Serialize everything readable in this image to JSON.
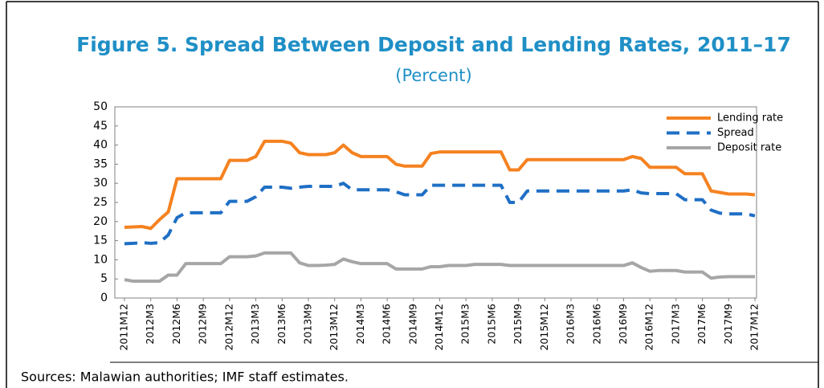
{
  "chart_data": {
    "type": "line",
    "title": "Figure 5. Spread Between Deposit and Lending Rates, 2011–17",
    "subtitle": "(Percent)",
    "source": "Sources: Malawian authorities; IMF staff estimates.",
    "categories": [
      "2011M12",
      null,
      null,
      "2012M3",
      null,
      null,
      "2012M6",
      null,
      null,
      "2012M9",
      null,
      null,
      "2012M12",
      null,
      null,
      "2013M3",
      null,
      null,
      "2013M6",
      null,
      null,
      "2013M9",
      null,
      null,
      "2013M12",
      null,
      null,
      "2014M3",
      null,
      null,
      "2014M6",
      null,
      null,
      "2014M9",
      null,
      null,
      "2014M12",
      null,
      null,
      "2015M3",
      null,
      null,
      "2015M6",
      null,
      null,
      "2015M9",
      null,
      null,
      "2015M12",
      null,
      null,
      "2016M3",
      null,
      null,
      "2016M6",
      null,
      null,
      "2016M9",
      null,
      null,
      "2016M12",
      null,
      null,
      "2017M3",
      null,
      null,
      "2017M6",
      null,
      null,
      "2017M9",
      null,
      null,
      "2017M12"
    ],
    "series": [
      {
        "name": "Lending rate",
        "color": "#f58220",
        "dashed": false,
        "values": [
          18.5,
          18.6,
          18.7,
          18.2,
          20.5,
          22.5,
          31.2,
          31.2,
          31.2,
          31.2,
          31.2,
          31.2,
          36,
          36,
          36,
          37,
          41,
          41,
          41,
          40.5,
          38,
          37.5,
          37.5,
          37.5,
          38,
          40,
          38,
          37,
          37,
          37,
          37,
          35,
          34.5,
          34.5,
          34.5,
          37.8,
          38.2,
          38.2,
          38.2,
          38.2,
          38.2,
          38.2,
          38.2,
          38.2,
          33.5,
          33.5,
          36.2,
          36.2,
          36.2,
          36.2,
          36.2,
          36.2,
          36.2,
          36.2,
          36.2,
          36.2,
          36.2,
          36.2,
          37,
          36.5,
          34.2,
          34.2,
          34.2,
          34.2,
          32.5,
          32.5,
          32.5,
          28,
          27.6,
          27.2,
          27.2,
          27.2,
          27
        ]
      },
      {
        "name": "Spread",
        "color": "#1f6fc5",
        "dashed": true,
        "values": [
          14.2,
          14.3,
          14.5,
          14.3,
          14.5,
          16.5,
          21,
          22.3,
          22.3,
          22.3,
          22.3,
          22.3,
          25.3,
          25.3,
          25.3,
          26.5,
          29,
          29,
          29,
          28.7,
          29,
          29.2,
          29.2,
          29.2,
          29.2,
          30,
          28.3,
          28.3,
          28.3,
          28.3,
          28.3,
          27.8,
          27,
          27,
          27,
          29.5,
          29.5,
          29.5,
          29.5,
          29.5,
          29.5,
          29.5,
          29.5,
          29.5,
          25,
          25,
          28,
          28,
          28,
          28,
          28,
          28,
          28,
          28,
          28,
          28,
          28,
          28,
          28.3,
          27.5,
          27.3,
          27.3,
          27.3,
          27.3,
          25.7,
          25.7,
          25.7,
          23,
          22.2,
          22,
          22,
          22,
          21.5
        ]
      },
      {
        "name": "Deposit rate",
        "color": "#a6a6a6",
        "dashed": false,
        "values": [
          4.8,
          4.4,
          4.4,
          4.4,
          4.4,
          6,
          6,
          9,
          9,
          9,
          9,
          9,
          10.8,
          10.8,
          10.8,
          11,
          11.8,
          11.8,
          11.8,
          11.8,
          9.2,
          8.5,
          8.5,
          8.6,
          8.8,
          10.2,
          9.5,
          9,
          9,
          9,
          9,
          7.6,
          7.6,
          7.6,
          7.6,
          8.2,
          8.2,
          8.5,
          8.5,
          8.5,
          8.8,
          8.8,
          8.8,
          8.8,
          8.5,
          8.5,
          8.5,
          8.5,
          8.5,
          8.5,
          8.5,
          8.5,
          8.5,
          8.5,
          8.5,
          8.5,
          8.5,
          8.5,
          9.2,
          8,
          7,
          7.2,
          7.2,
          7.2,
          6.8,
          6.8,
          6.8,
          5.2,
          5.5,
          5.6,
          5.6,
          5.6,
          5.6
        ]
      }
    ],
    "ylim": [
      0,
      50
    ],
    "yticks": [
      0,
      5,
      10,
      15,
      20,
      25,
      30,
      35,
      40,
      45,
      50
    ],
    "grid": false,
    "legend": "top-right"
  }
}
